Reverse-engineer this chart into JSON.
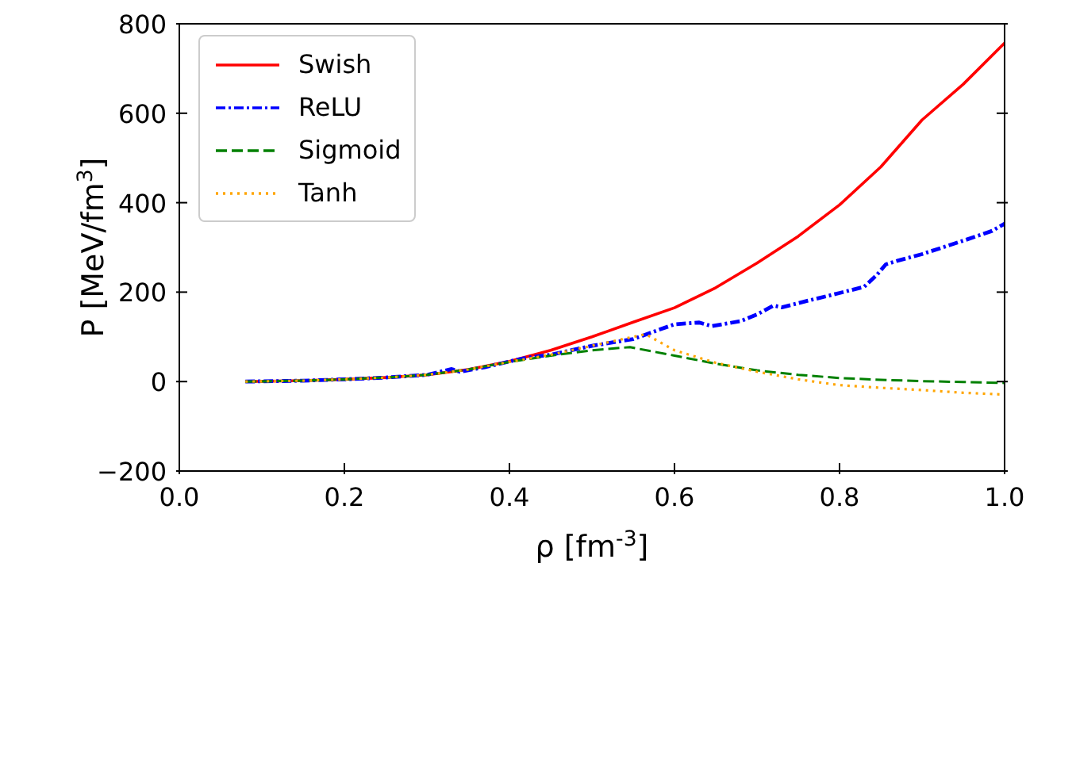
{
  "chart_data": {
    "type": "line",
    "xlabel": "ρ [fm$^{-3}$]",
    "ylabel": "P [MeV/fm$^{3}$]",
    "xlim": [
      0,
      1
    ],
    "xticks": [
      {
        "value": 0,
        "label": "0.0"
      },
      0.2,
      0.4,
      0.6,
      0.8,
      {
        "value": 1,
        "label": "1.0"
      }
    ],
    "ylim": [
      -200,
      800
    ],
    "yticks": [
      -200,
      0,
      200,
      400,
      600,
      800
    ],
    "legend": "top left",
    "marker": "none",
    "series": [
      {
        "name": "Swish",
        "color": "#ff0000",
        "line_style": "solid",
        "x": [
          0.08,
          0.15,
          0.2,
          0.25,
          0.3,
          0.35,
          0.4,
          0.45,
          0.5,
          0.55,
          0.6,
          0.65,
          0.7,
          0.75,
          0.8,
          0.85,
          0.9,
          0.95,
          1.0
        ],
        "values": [
          0,
          2,
          5,
          9,
          15,
          27,
          45,
          70,
          100,
          133,
          165,
          210,
          265,
          325,
          395,
          480,
          585,
          665,
          757
        ]
      },
      {
        "name": "ReLU",
        "color": "#0000ff",
        "line_style": "dashdot",
        "x": [
          0.08,
          0.15,
          0.2,
          0.25,
          0.3,
          0.33,
          0.34,
          0.37,
          0.4,
          0.42,
          0.45,
          0.5,
          0.55,
          0.58,
          0.6,
          0.63,
          0.645,
          0.68,
          0.7,
          0.72,
          0.73,
          0.76,
          0.8,
          0.83,
          0.845,
          0.856,
          0.87,
          0.9,
          0.95,
          0.985,
          1.0
        ],
        "values": [
          0,
          2,
          5,
          9,
          15,
          28,
          22,
          32,
          45,
          53,
          60,
          80,
          95,
          115,
          128,
          132,
          124,
          135,
          150,
          170,
          166,
          180,
          198,
          212,
          238,
          262,
          270,
          285,
          315,
          337,
          353
        ]
      },
      {
        "name": "Sigmoid",
        "color": "#008000",
        "line_style": "dashed",
        "x": [
          0.08,
          0.15,
          0.2,
          0.25,
          0.3,
          0.35,
          0.4,
          0.45,
          0.5,
          0.546,
          0.6,
          0.65,
          0.7,
          0.75,
          0.8,
          0.85,
          0.9,
          0.95,
          1.0
        ],
        "values": [
          0,
          2,
          5,
          9,
          15,
          27,
          44,
          58,
          70,
          77,
          58,
          40,
          25,
          15,
          8,
          4,
          1,
          -1,
          -3
        ]
      },
      {
        "name": "Tanh",
        "color": "#ffa500",
        "line_style": "dotted",
        "x": [
          0.08,
          0.15,
          0.2,
          0.25,
          0.3,
          0.35,
          0.4,
          0.45,
          0.5,
          0.55,
          0.565,
          0.6,
          0.65,
          0.7,
          0.75,
          0.8,
          0.85,
          0.9,
          0.95,
          1.0
        ],
        "values": [
          0,
          2,
          5,
          9,
          15,
          27,
          44,
          60,
          80,
          100,
          106,
          70,
          42,
          22,
          5,
          -8,
          -14,
          -19,
          -25,
          -29
        ]
      }
    ]
  }
}
